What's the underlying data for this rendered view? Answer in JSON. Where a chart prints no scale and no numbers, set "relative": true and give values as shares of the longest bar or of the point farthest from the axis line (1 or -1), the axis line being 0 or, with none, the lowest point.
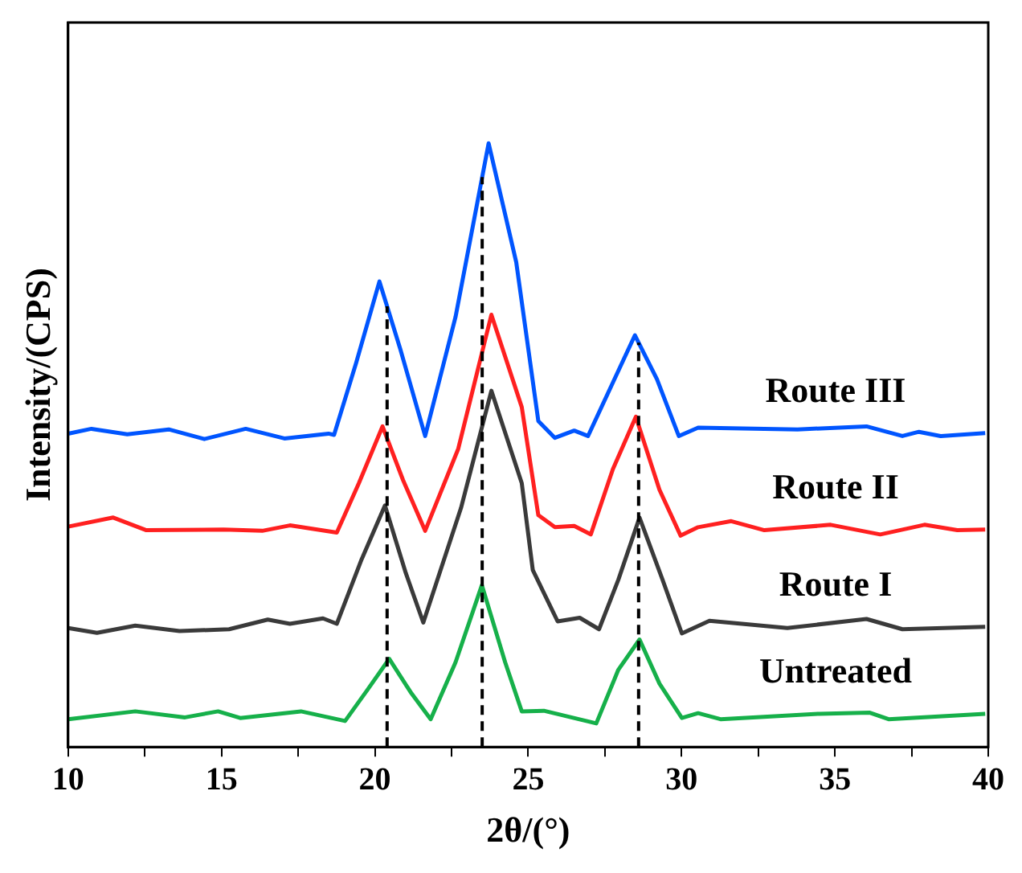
{
  "chart_data": {
    "type": "line",
    "xlabel": "2θ/(°)",
    "ylabel": "Intensity/(CPS)",
    "relative": true,
    "xlim": [
      10,
      40
    ],
    "xticks": [
      10,
      {
        "value": 12.5,
        "label": null
      },
      15,
      {
        "value": 17.5,
        "label": null
      },
      20,
      {
        "value": 22.5,
        "label": null
      },
      25,
      {
        "value": 27.5,
        "label": null
      },
      30,
      {
        "value": 32.5,
        "label": null
      },
      35,
      {
        "value": 37.5,
        "label": null
      },
      40
    ],
    "tick_labels": "x",
    "grid": false,
    "legend": false,
    "marker": "none",
    "line_style": "solid",
    "ref_lines": [
      {
        "axis": "x",
        "value": 20.4,
        "color": "#000000",
        "line_style": "dashed"
      },
      {
        "axis": "x",
        "value": 23.5,
        "color": "#000000",
        "line_style": "dashed"
      },
      {
        "axis": "x",
        "value": 28.6,
        "color": "#000000",
        "line_style": "dashed"
      }
    ],
    "series": [
      {
        "name": "Route III",
        "color": "#0055ff",
        "x": [
          10,
          10.76,
          11.93,
          13.28,
          14.44,
          15.79,
          17.05,
          18.49,
          18.67,
          19.39,
          20.15,
          20.83,
          21.64,
          22.63,
          23.71,
          24.61,
          25.33,
          25.87,
          26.5,
          26.95,
          28.48,
          29.2,
          29.91,
          30.54,
          33.78,
          36.03,
          37.2,
          37.74,
          38.45,
          39.9
        ],
        "values": [
          0.519,
          0.527,
          0.518,
          0.526,
          0.51,
          0.527,
          0.511,
          0.519,
          0.517,
          0.636,
          0.771,
          0.659,
          0.515,
          0.712,
          1,
          0.803,
          0.54,
          0.512,
          0.524,
          0.515,
          0.682,
          0.609,
          0.515,
          0.529,
          0.526,
          0.531,
          0.515,
          0.522,
          0.515,
          0.52
        ]
      },
      {
        "name": "Route II",
        "color": "#ff2020",
        "x": [
          10,
          11.47,
          12.55,
          15.07,
          16.33,
          17.23,
          18.76,
          19.48,
          20.25,
          20.92,
          21.64,
          22.72,
          23.8,
          24.79,
          25.33,
          25.87,
          26.5,
          27.04,
          27.76,
          28.51,
          29.28,
          29.97,
          30.54,
          31.62,
          32.7,
          34.86,
          36.48,
          37.92,
          38.99,
          39.9
        ],
        "values": [
          0.365,
          0.38,
          0.359,
          0.36,
          0.358,
          0.367,
          0.355,
          0.437,
          0.531,
          0.442,
          0.358,
          0.494,
          0.716,
          0.563,
          0.384,
          0.364,
          0.366,
          0.352,
          0.46,
          0.547,
          0.426,
          0.35,
          0.364,
          0.374,
          0.359,
          0.368,
          0.352,
          0.368,
          0.359,
          0.36
        ]
      },
      {
        "name": "Route I",
        "color": "#3a3a3a",
        "x": [
          10,
          10.94,
          12.19,
          13.63,
          15.25,
          16.51,
          17.23,
          18.31,
          18.76,
          19.57,
          20.33,
          21.01,
          21.58,
          22.81,
          23.8,
          24.79,
          25.15,
          25.96,
          26.68,
          27.31,
          27.94,
          28.63,
          29.38,
          30.01,
          30.91,
          33.45,
          36.03,
          37.2,
          39.9
        ],
        "values": [
          0.197,
          0.189,
          0.201,
          0.192,
          0.195,
          0.211,
          0.204,
          0.213,
          0.204,
          0.311,
          0.4,
          0.288,
          0.206,
          0.396,
          0.59,
          0.437,
          0.293,
          0.208,
          0.214,
          0.195,
          0.277,
          0.38,
          0.277,
          0.188,
          0.209,
          0.197,
          0.212,
          0.195,
          0.199
        ]
      },
      {
        "name": "Untreated",
        "color": "#16b04a",
        "x": [
          10,
          12.19,
          13.81,
          14.89,
          15.61,
          17.59,
          19.03,
          19.75,
          20.47,
          21.19,
          21.82,
          22.63,
          23.49,
          24.25,
          24.79,
          25.51,
          27.22,
          27.94,
          28.63,
          29.28,
          30.01,
          30.54,
          31.27,
          34.5,
          36.12,
          36.75,
          39.9
        ],
        "values": [
          0.046,
          0.059,
          0.049,
          0.059,
          0.048,
          0.059,
          0.043,
          0.094,
          0.146,
          0.089,
          0.046,
          0.14,
          0.268,
          0.14,
          0.059,
          0.06,
          0.039,
          0.128,
          0.178,
          0.105,
          0.048,
          0.056,
          0.046,
          0.055,
          0.057,
          0.046,
          0.055
        ]
      }
    ]
  }
}
